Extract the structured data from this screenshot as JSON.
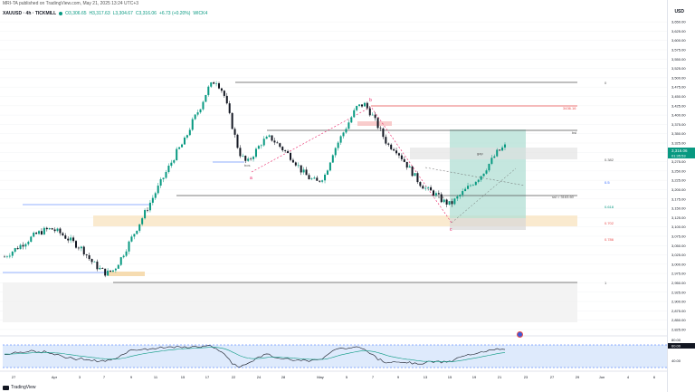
{
  "header": {
    "published_by": "MRI-TA published on TradingView.com, May 21, 2025 13:24 UTC+3",
    "symbol": "XAUUSD · 4h · TICKMILL",
    "open": "O3,306.65",
    "high": "H3,317.63",
    "low": "L3,304.67",
    "close": "C3,316.06",
    "change": "+6.73 (+0.20%)",
    "extra": "WICK4"
  },
  "price_axis": {
    "currency": "USD",
    "ticks": [
      "3,650.00",
      "3,625.00",
      "3,600.00",
      "3,575.00",
      "3,550.00",
      "3,525.00",
      "3,500.00",
      "3,475.00",
      "3,450.00",
      "3,425.00",
      "3,400.00",
      "3,375.00",
      "3,350.00",
      "3,325.00",
      "3,300.00",
      "3,275.00",
      "3,250.00",
      "3,225.00",
      "3,200.00",
      "3,175.00",
      "3,150.00",
      "3,125.00",
      "3,100.00",
      "3,075.00",
      "3,050.00",
      "3,025.00",
      "3,000.00",
      "2,975.00",
      "2,950.00",
      "2,925.00",
      "2,900.00",
      "2,875.00",
      "2,850.00",
      "2,825.00"
    ],
    "current_price": "3,316.06",
    "current_countdown": "01:35:53",
    "rsi_ticks": [
      "80.00",
      "40.00"
    ],
    "rsi_value": "60.00"
  },
  "time_axis": {
    "labels": [
      "27",
      "Apr",
      "3",
      "7",
      "9",
      "11",
      "15",
      "17",
      "22",
      "24",
      "28",
      "May",
      "5",
      "7",
      "9",
      "13",
      "15",
      "19",
      "21",
      "23",
      "27",
      "29",
      "Jun",
      "4",
      "6"
    ]
  },
  "annotations": {
    "fib_levels": [
      "0",
      "0.382",
      "0.5",
      "0.618",
      "0.702",
      "0.786",
      "1"
    ],
    "point_labels": {
      "a": "a",
      "b": "b",
      "c": "c"
    },
    "price_tag_red": "3436.16",
    "price_tag_bsl": "bsl",
    "ssl_label": "ssl = 3163.60",
    "ssl_label2": "ssl = 3163.60",
    "gap_label": "gap",
    "bos_label": "bos",
    "bos_label2": "bos"
  },
  "footer": {
    "brand": "TradingView"
  },
  "colors": {
    "bull": "#089981",
    "bear": "#131722",
    "accent": "#2962ff",
    "sell_zone": "#f5d8a8",
    "target_zone": "#b2dfd4",
    "rsi_band": "#d6e5fb",
    "pink": "#e91e63",
    "red": "#e84b4b"
  },
  "chart_data": {
    "type": "candlestick",
    "symbol": "XAUUSD",
    "interval": "4h",
    "ylim": [
      2820,
      3660
    ],
    "price_path": [
      3020,
      3035,
      3050,
      3065,
      3080,
      3090,
      3095,
      3085,
      3070,
      3055,
      3040,
      3010,
      2990,
      2975,
      2985,
      3020,
      3060,
      3100,
      3140,
      3180,
      3220,
      3260,
      3300,
      3330,
      3380,
      3420,
      3470,
      3495,
      3460,
      3380,
      3300,
      3270,
      3300,
      3330,
      3340,
      3320,
      3300,
      3280,
      3250,
      3230,
      3220,
      3240,
      3300,
      3340,
      3380,
      3420,
      3430,
      3400,
      3360,
      3320,
      3310,
      3280,
      3250,
      3220,
      3200,
      3190,
      3170,
      3160,
      3180,
      3200,
      3220,
      3240,
      3270,
      3300,
      3316
    ],
    "rsi_ylim": [
      20,
      90
    ]
  }
}
